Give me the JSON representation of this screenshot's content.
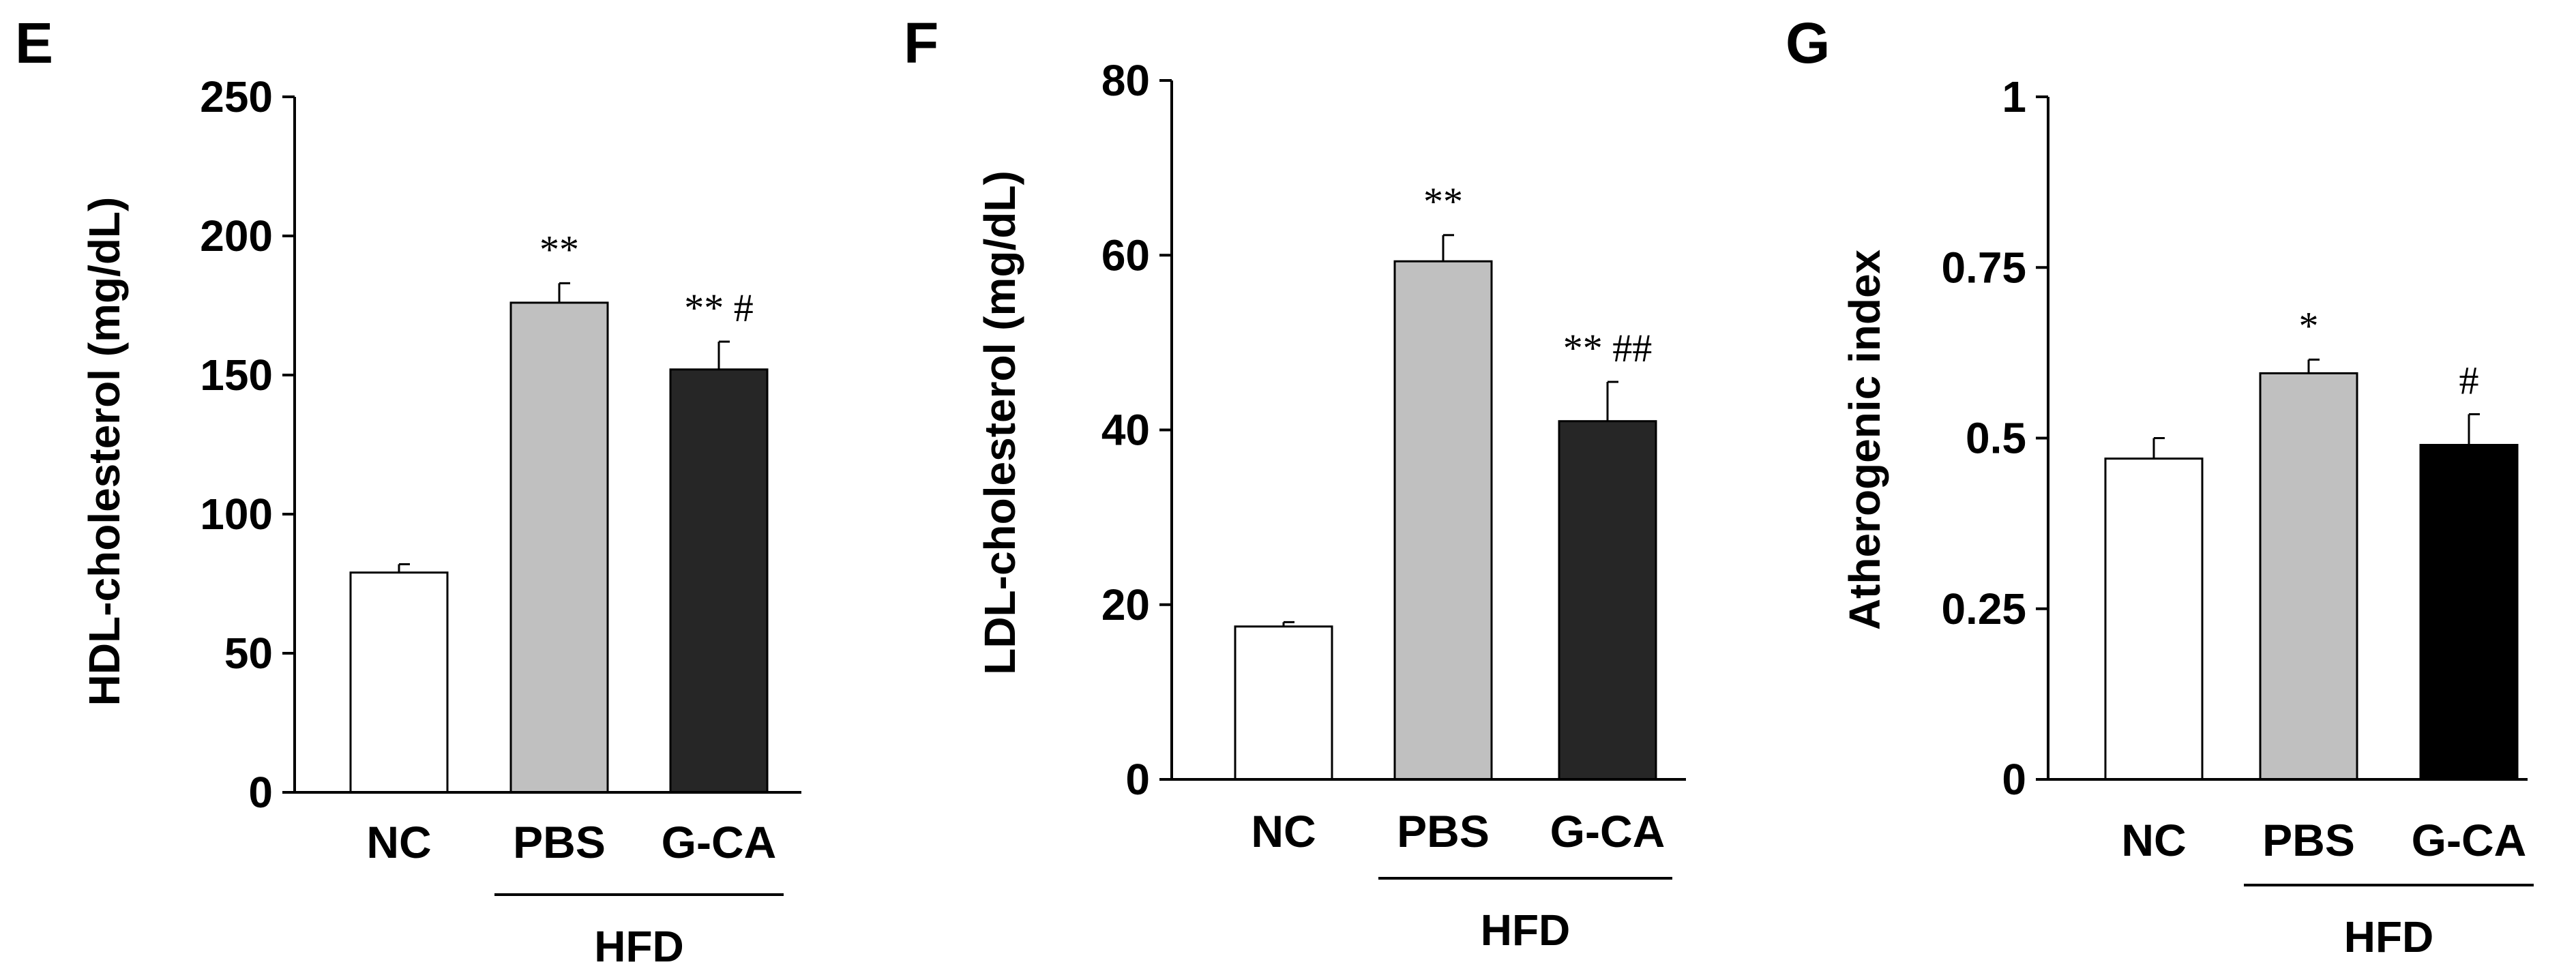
{
  "chart_data": [
    {
      "type": "bar",
      "panel": "E",
      "ylabel": "HDL-cholesterol (mg/dL)",
      "ylim": [
        0,
        250
      ],
      "yticks": [
        "0",
        "50",
        "100",
        "150",
        "200",
        "250"
      ],
      "ytick_values": [
        0,
        50,
        100,
        150,
        200,
        250
      ],
      "categories": [
        "NC",
        "PBS",
        "G-CA"
      ],
      "values": [
        79,
        176,
        152
      ],
      "errors": [
        3,
        7,
        10
      ],
      "bar_colors": [
        "#ffffff",
        "#c0c0c0",
        "#262626"
      ],
      "annotations": [
        "",
        "**",
        "** #"
      ],
      "group": {
        "label": "HFD",
        "spans": [
          "PBS",
          "G-CA"
        ]
      }
    },
    {
      "type": "bar",
      "panel": "F",
      "ylabel": "LDL-cholesterol (mg/dL)",
      "ylim": [
        0,
        80
      ],
      "yticks": [
        "0",
        "20",
        "40",
        "60",
        "80"
      ],
      "ytick_values": [
        0,
        20,
        40,
        60,
        80
      ],
      "categories": [
        "NC",
        "PBS",
        "G-CA"
      ],
      "values": [
        17.5,
        59.3,
        41
      ],
      "errors": [
        0.5,
        3,
        4.5
      ],
      "bar_colors": [
        "#ffffff",
        "#c0c0c0",
        "#262626"
      ],
      "annotations": [
        "",
        "**",
        "** ##"
      ],
      "group": {
        "label": "HFD",
        "spans": [
          "PBS",
          "G-CA"
        ]
      }
    },
    {
      "type": "bar",
      "panel": "G",
      "ylabel": "Atherogenic index",
      "ylim": [
        0,
        1
      ],
      "yticks": [
        "0",
        "0.25",
        "0.5",
        "0.75",
        "1"
      ],
      "ytick_values": [
        0,
        0.25,
        0.5,
        0.75,
        1
      ],
      "categories": [
        "NC",
        "PBS",
        "G-CA"
      ],
      "values": [
        0.47,
        0.595,
        0.49
      ],
      "errors": [
        0.03,
        0.02,
        0.045
      ],
      "bar_colors": [
        "#ffffff",
        "#c0c0c0",
        "#000000"
      ],
      "annotations": [
        "",
        "*",
        "#"
      ],
      "group": {
        "label": "HFD",
        "spans": [
          "PBS",
          "G-CA"
        ]
      }
    }
  ]
}
